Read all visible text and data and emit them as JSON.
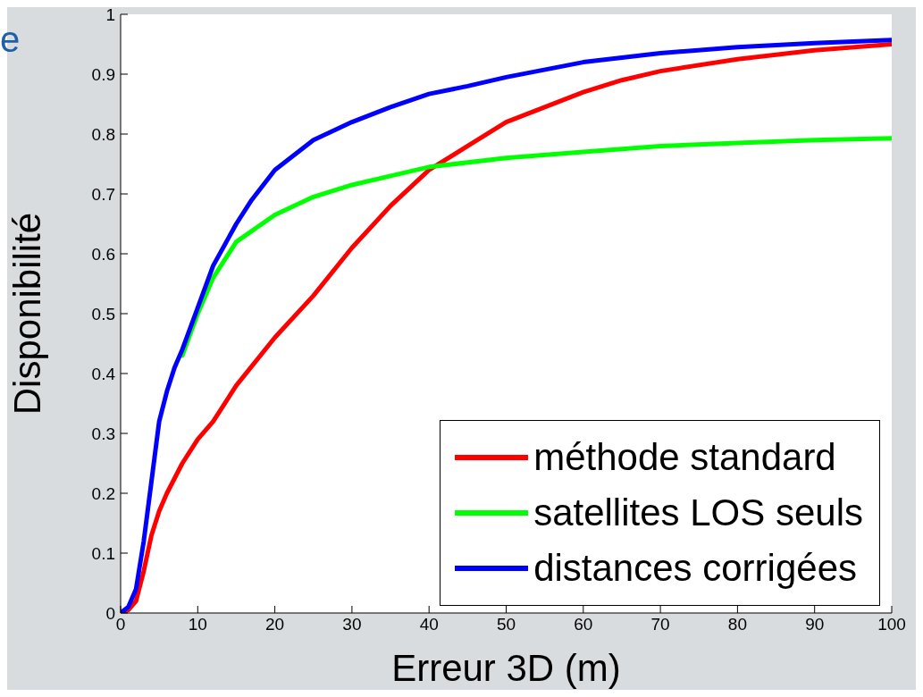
{
  "chart_data": {
    "type": "line",
    "xlabel": "Erreur 3D (m)",
    "ylabel": "Disponibilité",
    "annotations": [
      "e"
    ],
    "xlim": [
      0,
      100
    ],
    "xticks": [
      0,
      10,
      20,
      30,
      40,
      50,
      60,
      70,
      80,
      90,
      100
    ],
    "ylim": [
      0,
      1
    ],
    "yticks": [
      0,
      0.1,
      0.2,
      0.3,
      0.4,
      0.5,
      0.6,
      0.7,
      0.8,
      0.9,
      1
    ],
    "grid": false,
    "legend": "bottom right",
    "marker": "none",
    "line_style": "solid",
    "series": [
      {
        "name": "méthode standard",
        "color": "#ff0000",
        "x": [
          0,
          1,
          2,
          3,
          4,
          5,
          6,
          8,
          10,
          12,
          15,
          20,
          25,
          30,
          35,
          40,
          45,
          50,
          55,
          60,
          65,
          70,
          80,
          90,
          100
        ],
        "values": [
          0,
          0.005,
          0.02,
          0.07,
          0.13,
          0.17,
          0.2,
          0.25,
          0.29,
          0.32,
          0.38,
          0.46,
          0.53,
          0.61,
          0.68,
          0.74,
          0.78,
          0.82,
          0.845,
          0.87,
          0.89,
          0.905,
          0.925,
          0.94,
          0.95
        ]
      },
      {
        "name": "satellites LOS seuls",
        "color": "#00ff00",
        "x": [
          8,
          10,
          12,
          15,
          20,
          25,
          30,
          35,
          40,
          50,
          60,
          70,
          80,
          90,
          100
        ],
        "values": [
          0.43,
          0.5,
          0.56,
          0.62,
          0.665,
          0.695,
          0.715,
          0.73,
          0.745,
          0.76,
          0.77,
          0.78,
          0.785,
          0.79,
          0.793
        ]
      },
      {
        "name": "distances corrigées",
        "color": "#0000ff",
        "x": [
          0,
          1,
          2,
          3,
          4,
          5,
          6,
          7,
          8,
          10,
          12,
          15,
          17,
          20,
          25,
          30,
          35,
          40,
          45,
          50,
          60,
          70,
          80,
          90,
          100
        ],
        "values": [
          0,
          0.01,
          0.04,
          0.12,
          0.22,
          0.32,
          0.37,
          0.41,
          0.44,
          0.51,
          0.58,
          0.65,
          0.69,
          0.74,
          0.79,
          0.82,
          0.845,
          0.867,
          0.88,
          0.895,
          0.92,
          0.935,
          0.945,
          0.952,
          0.957
        ]
      }
    ]
  }
}
